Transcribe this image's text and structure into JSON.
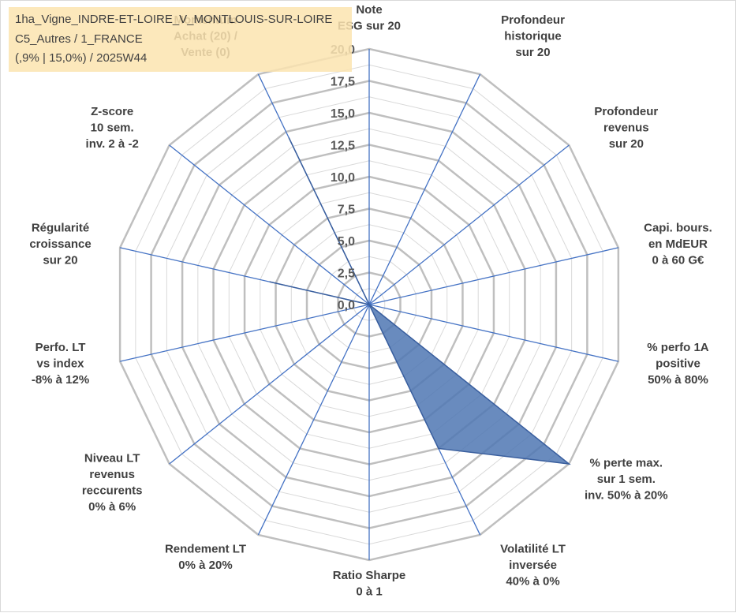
{
  "info_box": {
    "line1": "1ha_Vigne_INDRE-ET-LOIRE_V_MONTLOUIS-SUR-LOIRE",
    "line2": "C5_Autres / 1_FRANCE",
    "line3": "(,9% | 15,0%) / 2025W44"
  },
  "chart_data": {
    "type": "radar",
    "title": "",
    "rmax": 20,
    "ticks": [
      "0,0",
      "2,5",
      "5,0",
      "7,5",
      "10,0",
      "12,5",
      "15,0",
      "17,5",
      "20,0"
    ],
    "tick_values": [
      0,
      2.5,
      5,
      7.5,
      10,
      12.5,
      15,
      17.5,
      20
    ],
    "minor_gridlines": true,
    "grid": true,
    "axes": [
      {
        "label": [
          "Note",
          "ESG sur 20"
        ]
      },
      {
        "label": [
          "Profondeur",
          "historique",
          "sur 20"
        ]
      },
      {
        "label": [
          "Profondeur",
          "revenus",
          "sur 20"
        ]
      },
      {
        "label": [
          "Capi. bours.",
          "en MdEUR",
          "0 à 60 G€"
        ]
      },
      {
        "label": [
          "% perfo 1A",
          "positive",
          "50% à 80%"
        ]
      },
      {
        "label": [
          "% perte max.",
          "sur 1 sem.",
          "inv. 50% à 20%"
        ]
      },
      {
        "label": [
          "Volatilité LT",
          "inversée",
          "40% à 0%"
        ]
      },
      {
        "label": [
          "Ratio Sharpe",
          "0 à 1"
        ]
      },
      {
        "label": [
          "Rendement LT",
          "0% à 20%"
        ]
      },
      {
        "label": [
          "Niveau LT",
          "revenus",
          "reccurents",
          "0% à 6%"
        ]
      },
      {
        "label": [
          "Perfo. LT",
          "vs index",
          "-8% à 12%"
        ]
      },
      {
        "label": [
          "Régularité",
          "croissance",
          "sur 20"
        ]
      },
      {
        "label": [
          "Z-score",
          "10 sem.",
          "inv. 2 à -2"
        ]
      },
      {
        "label": [
          "Momentum",
          "Achat (20) /",
          "Vente (0)"
        ]
      }
    ],
    "series": [
      {
        "values": [
          0,
          0,
          0,
          0,
          0,
          20,
          12.5,
          0,
          0,
          0,
          0,
          8,
          0,
          14.5
        ]
      }
    ],
    "series_color": "#4f77b3",
    "series_stroke": "#3a5f9e",
    "axis_color": "#4472c4",
    "grid_color": "#bfbfbf",
    "minor_grid_color": "#d9d9d9"
  }
}
